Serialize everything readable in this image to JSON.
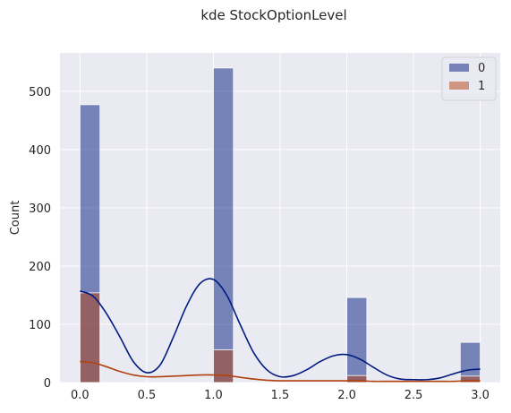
{
  "chart_data": {
    "type": "bar",
    "title": "kde StockOptionLevel",
    "xlabel": "",
    "ylabel": "Count",
    "xlim": [
      -0.15,
      3.15
    ],
    "ylim": [
      0,
      566
    ],
    "xticks": [
      0.0,
      0.5,
      1.0,
      1.5,
      2.0,
      2.5,
      3.0
    ],
    "xtick_labels": [
      "0.0",
      "0.5",
      "1.0",
      "1.5",
      "2.0",
      "2.5",
      "3.0"
    ],
    "yticks": [
      0,
      100,
      200,
      300,
      400,
      500
    ],
    "ytick_labels": [
      "0",
      "100",
      "200",
      "300",
      "400",
      "500"
    ],
    "grid": true,
    "legend_position": "top-right",
    "bin_width": 0.15,
    "series": [
      {
        "name": "0",
        "color": "#001c7f",
        "bins": [
          {
            "x0": 0.0,
            "count": 477
          },
          {
            "x0": 1.0,
            "count": 540
          },
          {
            "x0": 2.0,
            "count": 146
          },
          {
            "x0": 2.85,
            "count": 69
          }
        ],
        "kde": [
          [
            0.0,
            157
          ],
          [
            0.1,
            148
          ],
          [
            0.2,
            118
          ],
          [
            0.3,
            78
          ],
          [
            0.4,
            36
          ],
          [
            0.5,
            17
          ],
          [
            0.6,
            30
          ],
          [
            0.7,
            78
          ],
          [
            0.8,
            132
          ],
          [
            0.9,
            170
          ],
          [
            1.0,
            177
          ],
          [
            1.1,
            150
          ],
          [
            1.2,
            100
          ],
          [
            1.3,
            52
          ],
          [
            1.4,
            22
          ],
          [
            1.5,
            10
          ],
          [
            1.6,
            12
          ],
          [
            1.7,
            22
          ],
          [
            1.8,
            36
          ],
          [
            1.9,
            46
          ],
          [
            2.0,
            48
          ],
          [
            2.1,
            40
          ],
          [
            2.2,
            26
          ],
          [
            2.3,
            13
          ],
          [
            2.4,
            6
          ],
          [
            2.5,
            5
          ],
          [
            2.6,
            5
          ],
          [
            2.7,
            8
          ],
          [
            2.8,
            15
          ],
          [
            2.9,
            21
          ],
          [
            3.0,
            23
          ]
        ]
      },
      {
        "name": "1",
        "color": "#b1400d",
        "bins": [
          {
            "x0": 0.0,
            "count": 154
          },
          {
            "x0": 1.0,
            "count": 56
          },
          {
            "x0": 2.0,
            "count": 12
          },
          {
            "x0": 2.85,
            "count": 11
          }
        ],
        "kde": [
          [
            0.0,
            36
          ],
          [
            0.1,
            34
          ],
          [
            0.2,
            27
          ],
          [
            0.3,
            19
          ],
          [
            0.4,
            13
          ],
          [
            0.5,
            10
          ],
          [
            0.6,
            10
          ],
          [
            0.7,
            11
          ],
          [
            0.8,
            12
          ],
          [
            0.9,
            13
          ],
          [
            1.0,
            13
          ],
          [
            1.1,
            12
          ],
          [
            1.2,
            9
          ],
          [
            1.3,
            6
          ],
          [
            1.4,
            4
          ],
          [
            1.5,
            3
          ],
          [
            1.6,
            3
          ],
          [
            1.7,
            3
          ],
          [
            1.8,
            3
          ],
          [
            1.9,
            3
          ],
          [
            2.0,
            3
          ],
          [
            2.1,
            3
          ],
          [
            2.2,
            2
          ],
          [
            2.3,
            2
          ],
          [
            2.4,
            2
          ],
          [
            2.5,
            2
          ],
          [
            2.6,
            2
          ],
          [
            2.7,
            2
          ],
          [
            2.8,
            2
          ],
          [
            2.9,
            3
          ],
          [
            3.0,
            3
          ]
        ]
      }
    ]
  }
}
